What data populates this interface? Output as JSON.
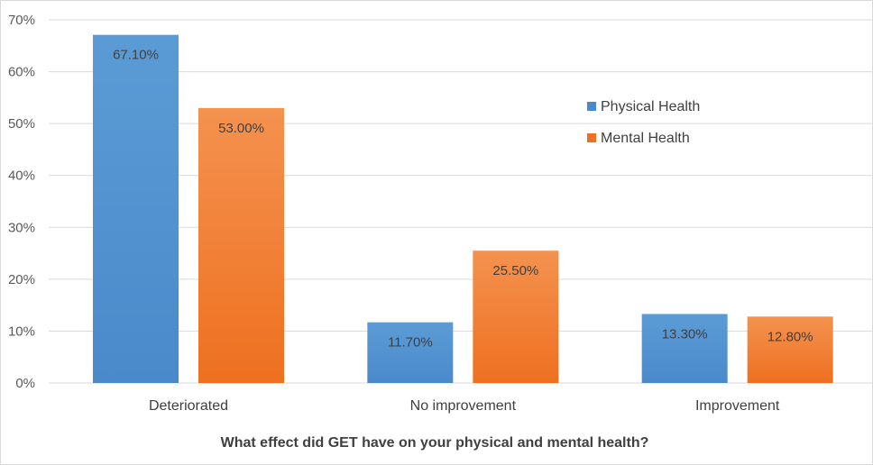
{
  "chart_data": {
    "type": "bar",
    "title": "",
    "xlabel": "What effect did GET have on your physical and mental health?",
    "ylabel": "",
    "categories": [
      "Deteriorated",
      "No improvement",
      "Improvement"
    ],
    "series": [
      {
        "name": "Physical Health",
        "values": [
          67.1,
          11.7,
          13.3
        ],
        "labels": [
          "67.10%",
          "11.70%",
          "13.30%"
        ],
        "color": "#5b9bd5",
        "color_dark": "#4a8acb"
      },
      {
        "name": "Mental Health",
        "values": [
          53.0,
          25.5,
          12.8
        ],
        "labels": [
          "53.00%",
          "25.50%",
          "12.80%"
        ],
        "color": "#f4924f",
        "color_dark": "#ee7020"
      }
    ],
    "ylim": [
      0,
      70
    ],
    "yticks": [
      0,
      10,
      20,
      30,
      40,
      50,
      60,
      70
    ],
    "ytick_labels": [
      "0%",
      "10%",
      "20%",
      "30%",
      "40%",
      "50%",
      "60%",
      "70%"
    ],
    "grid": true,
    "legend_position": "right"
  }
}
